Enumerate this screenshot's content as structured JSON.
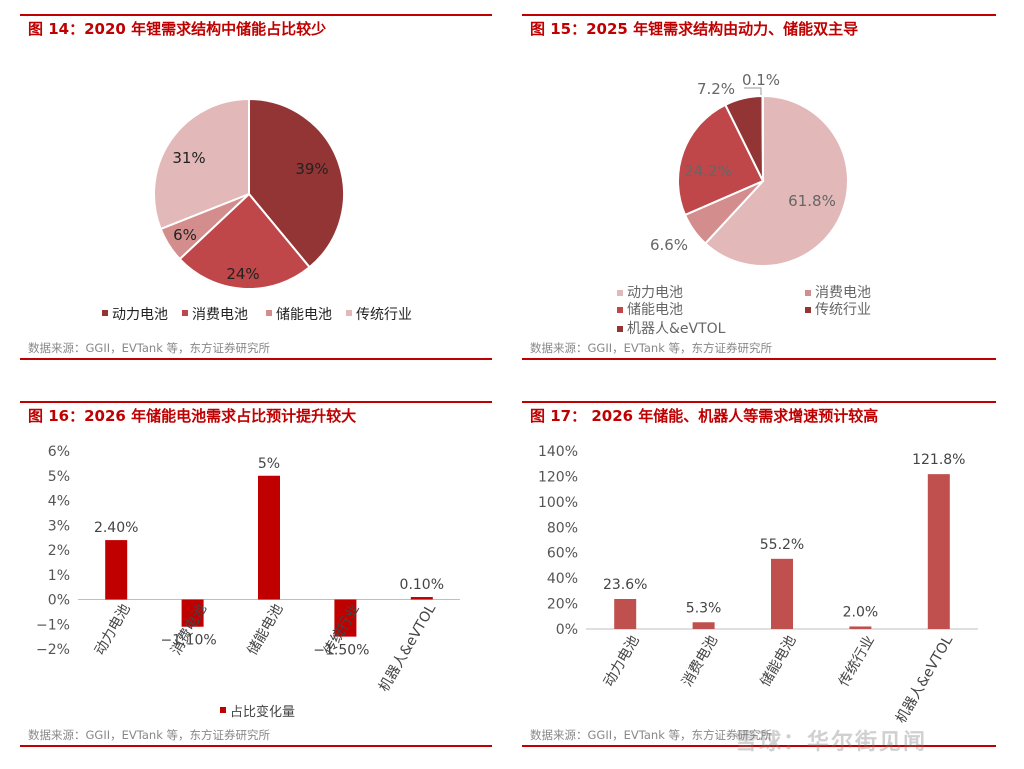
{
  "colors": {
    "accent": "#c00000",
    "dark_red": "#943535",
    "mid_red": "#bf4749",
    "rose": "#d48d8d",
    "pink": "#e2b8b9",
    "bar_red": "#c00000",
    "bar_muted": "#c0504d"
  },
  "watermark": "雪球：华尔街见闻",
  "panels": [
    {
      "title": "图 14：2020 年锂需求结构中储能占比较少",
      "source": "数据来源：GGII，EVTank 等，东方证券研究所",
      "chart_data": {
        "type": "pie",
        "categories": [
          "动力电池",
          "消费电池",
          "储能电池",
          "传统行业"
        ],
        "values": [
          39,
          24,
          6,
          31
        ],
        "labels": [
          "39%",
          "24%",
          "6%",
          "31%"
        ],
        "legend_position": "bottom"
      }
    },
    {
      "title": "图 15：2025 年锂需求结构由动力、储能双主导",
      "source": "数据来源：GGII，EVTank 等，东方证券研究所",
      "chart_data": {
        "type": "pie",
        "categories": [
          "动力电池",
          "消费电池",
          "储能电池",
          "传统行业",
          "机器人&eVTOL"
        ],
        "values": [
          61.8,
          6.6,
          24.2,
          7.2,
          0.1
        ],
        "labels": [
          "61.8%",
          "6.6%",
          "24.2%",
          "7.2%",
          "0.1%"
        ],
        "legend_position": "bottom"
      }
    },
    {
      "title": "图 16：2026 年储能电池需求占比预计提升较大",
      "source": "数据来源：GGII，EVTank 等，东方证券研究所",
      "chart_data": {
        "type": "bar",
        "categories": [
          "动力电池",
          "消费电池",
          "储能电池",
          "传统行业",
          "机器人&eVTOL"
        ],
        "values": [
          2.4,
          -1.1,
          5.0,
          -1.5,
          0.1
        ],
        "data_labels": [
          "2.40%",
          "−1.10%",
          "5%",
          "−1.50%",
          "0.10%"
        ],
        "ylim": [
          -2,
          6
        ],
        "yticks": [
          "−2%",
          "−1%",
          "0%",
          "1%",
          "2%",
          "3%",
          "4%",
          "5%",
          "6%"
        ],
        "legend": [
          "占比变化量"
        ],
        "legend_position": "bottom"
      }
    },
    {
      "title": "图 17： 2026 年储能、机器人等需求增速预计较高",
      "source": "数据来源：GGII，EVTank 等，东方证券研究所",
      "chart_data": {
        "type": "bar",
        "categories": [
          "动力电池",
          "消费电池",
          "储能电池",
          "传统行业",
          "机器人&eVTOL"
        ],
        "values": [
          23.6,
          5.3,
          55.2,
          2.0,
          121.8
        ],
        "data_labels": [
          "23.6%",
          "5.3%",
          "55.2%",
          "2.0%",
          "121.8%"
        ],
        "ylim": [
          0,
          140
        ],
        "yticks": [
          "0%",
          "20%",
          "40%",
          "60%",
          "80%",
          "100%",
          "120%",
          "140%"
        ]
      }
    }
  ]
}
